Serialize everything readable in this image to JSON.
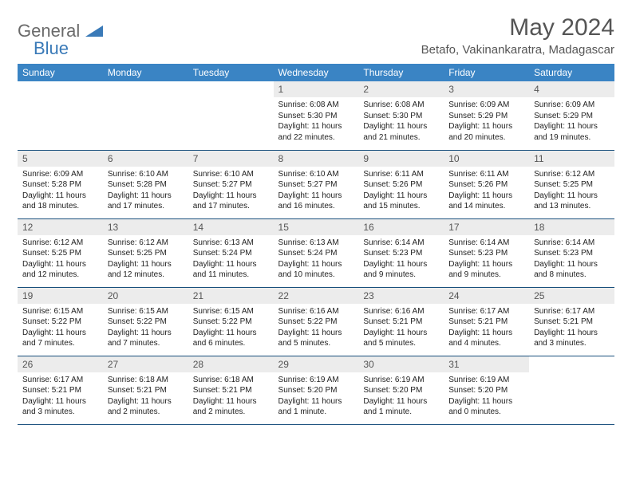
{
  "brand": {
    "word1": "General",
    "word2": "Blue",
    "accent": "#3a84c4",
    "gray": "#6a6a6a"
  },
  "title": "May 2024",
  "location": "Betafo, Vakinankaratra, Madagascar",
  "colors": {
    "header_bg": "#3a84c4",
    "header_fg": "#ffffff",
    "row_border": "#184f7c",
    "daynum_bg": "#ececec"
  },
  "weekdays": [
    "Sunday",
    "Monday",
    "Tuesday",
    "Wednesday",
    "Thursday",
    "Friday",
    "Saturday"
  ],
  "weeks": [
    [
      null,
      null,
      null,
      {
        "n": "1",
        "sr": "6:08 AM",
        "ss": "5:30 PM",
        "dl": "11 hours and 22 minutes."
      },
      {
        "n": "2",
        "sr": "6:08 AM",
        "ss": "5:30 PM",
        "dl": "11 hours and 21 minutes."
      },
      {
        "n": "3",
        "sr": "6:09 AM",
        "ss": "5:29 PM",
        "dl": "11 hours and 20 minutes."
      },
      {
        "n": "4",
        "sr": "6:09 AM",
        "ss": "5:29 PM",
        "dl": "11 hours and 19 minutes."
      }
    ],
    [
      {
        "n": "5",
        "sr": "6:09 AM",
        "ss": "5:28 PM",
        "dl": "11 hours and 18 minutes."
      },
      {
        "n": "6",
        "sr": "6:10 AM",
        "ss": "5:28 PM",
        "dl": "11 hours and 17 minutes."
      },
      {
        "n": "7",
        "sr": "6:10 AM",
        "ss": "5:27 PM",
        "dl": "11 hours and 17 minutes."
      },
      {
        "n": "8",
        "sr": "6:10 AM",
        "ss": "5:27 PM",
        "dl": "11 hours and 16 minutes."
      },
      {
        "n": "9",
        "sr": "6:11 AM",
        "ss": "5:26 PM",
        "dl": "11 hours and 15 minutes."
      },
      {
        "n": "10",
        "sr": "6:11 AM",
        "ss": "5:26 PM",
        "dl": "11 hours and 14 minutes."
      },
      {
        "n": "11",
        "sr": "6:12 AM",
        "ss": "5:25 PM",
        "dl": "11 hours and 13 minutes."
      }
    ],
    [
      {
        "n": "12",
        "sr": "6:12 AM",
        "ss": "5:25 PM",
        "dl": "11 hours and 12 minutes."
      },
      {
        "n": "13",
        "sr": "6:12 AM",
        "ss": "5:25 PM",
        "dl": "11 hours and 12 minutes."
      },
      {
        "n": "14",
        "sr": "6:13 AM",
        "ss": "5:24 PM",
        "dl": "11 hours and 11 minutes."
      },
      {
        "n": "15",
        "sr": "6:13 AM",
        "ss": "5:24 PM",
        "dl": "11 hours and 10 minutes."
      },
      {
        "n": "16",
        "sr": "6:14 AM",
        "ss": "5:23 PM",
        "dl": "11 hours and 9 minutes."
      },
      {
        "n": "17",
        "sr": "6:14 AM",
        "ss": "5:23 PM",
        "dl": "11 hours and 9 minutes."
      },
      {
        "n": "18",
        "sr": "6:14 AM",
        "ss": "5:23 PM",
        "dl": "11 hours and 8 minutes."
      }
    ],
    [
      {
        "n": "19",
        "sr": "6:15 AM",
        "ss": "5:22 PM",
        "dl": "11 hours and 7 minutes."
      },
      {
        "n": "20",
        "sr": "6:15 AM",
        "ss": "5:22 PM",
        "dl": "11 hours and 7 minutes."
      },
      {
        "n": "21",
        "sr": "6:15 AM",
        "ss": "5:22 PM",
        "dl": "11 hours and 6 minutes."
      },
      {
        "n": "22",
        "sr": "6:16 AM",
        "ss": "5:22 PM",
        "dl": "11 hours and 5 minutes."
      },
      {
        "n": "23",
        "sr": "6:16 AM",
        "ss": "5:21 PM",
        "dl": "11 hours and 5 minutes."
      },
      {
        "n": "24",
        "sr": "6:17 AM",
        "ss": "5:21 PM",
        "dl": "11 hours and 4 minutes."
      },
      {
        "n": "25",
        "sr": "6:17 AM",
        "ss": "5:21 PM",
        "dl": "11 hours and 3 minutes."
      }
    ],
    [
      {
        "n": "26",
        "sr": "6:17 AM",
        "ss": "5:21 PM",
        "dl": "11 hours and 3 minutes."
      },
      {
        "n": "27",
        "sr": "6:18 AM",
        "ss": "5:21 PM",
        "dl": "11 hours and 2 minutes."
      },
      {
        "n": "28",
        "sr": "6:18 AM",
        "ss": "5:21 PM",
        "dl": "11 hours and 2 minutes."
      },
      {
        "n": "29",
        "sr": "6:19 AM",
        "ss": "5:20 PM",
        "dl": "11 hours and 1 minute."
      },
      {
        "n": "30",
        "sr": "6:19 AM",
        "ss": "5:20 PM",
        "dl": "11 hours and 1 minute."
      },
      {
        "n": "31",
        "sr": "6:19 AM",
        "ss": "5:20 PM",
        "dl": "11 hours and 0 minutes."
      },
      null
    ]
  ],
  "labels": {
    "sunrise": "Sunrise:",
    "sunset": "Sunset:",
    "daylight": "Daylight:"
  }
}
